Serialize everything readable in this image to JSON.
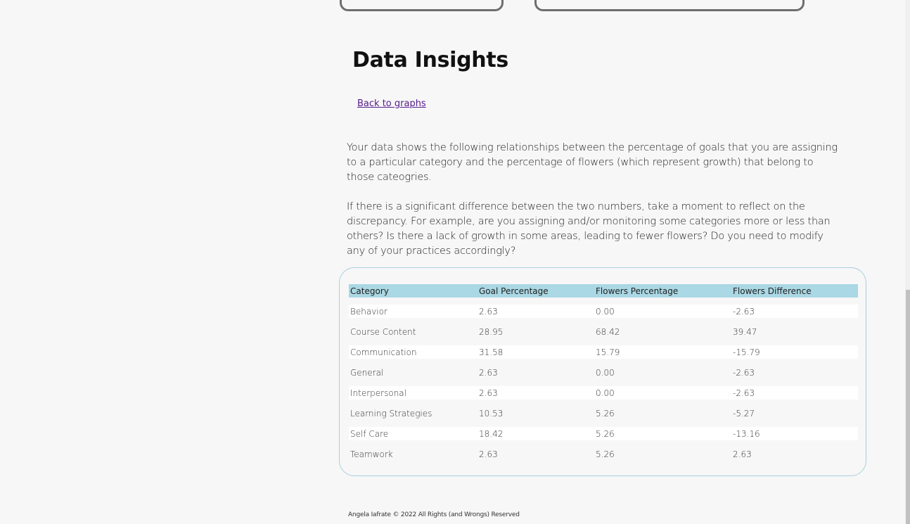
{
  "heading": "Data Insights",
  "back_link": "Back to graphs",
  "paragraphs": {
    "intro": "Your data shows the following relationships between the percentage of goals that you are assigning to a particular category and the percentage of flowers (which represent growth) that belong to those cateogries.",
    "reflect": "If there is a significant difference between the two numbers, take a moment to reflect on the discrepancy. For example, are you assigning and/or monitoring some categories more or less than others? Is there a lack of growth in some areas, leading to fewer flowers? Do you need to modify any of your practices accordingly?"
  },
  "table": {
    "headers": [
      "Category",
      "Goal Percentage",
      "Flowers Percentage",
      "Flowers Difference"
    ],
    "rows": [
      [
        "Behavior",
        "2.63",
        "0.00",
        "-2.63"
      ],
      [
        "Course Content",
        "28.95",
        "68.42",
        "39.47"
      ],
      [
        "Communication",
        "31.58",
        "15.79",
        "-15.79"
      ],
      [
        "General",
        "2.63",
        "0.00",
        "-2.63"
      ],
      [
        "Interpersonal",
        "2.63",
        "0.00",
        "-2.63"
      ],
      [
        "Learning Strategies",
        "10.53",
        "5.26",
        "-5.27"
      ],
      [
        "Self Care",
        "18.42",
        "5.26",
        "-13.16"
      ],
      [
        "Teamwork",
        "2.63",
        "5.26",
        "2.63"
      ]
    ]
  },
  "footer": "Angela Iafrate © 2022 All Rights (and Wrongs) Reserved",
  "colors": {
    "table_header_bg": "#aad8e4",
    "table_border": "#a8d0de",
    "link": "#551a8b",
    "flower_green": "#6b8f2a"
  }
}
